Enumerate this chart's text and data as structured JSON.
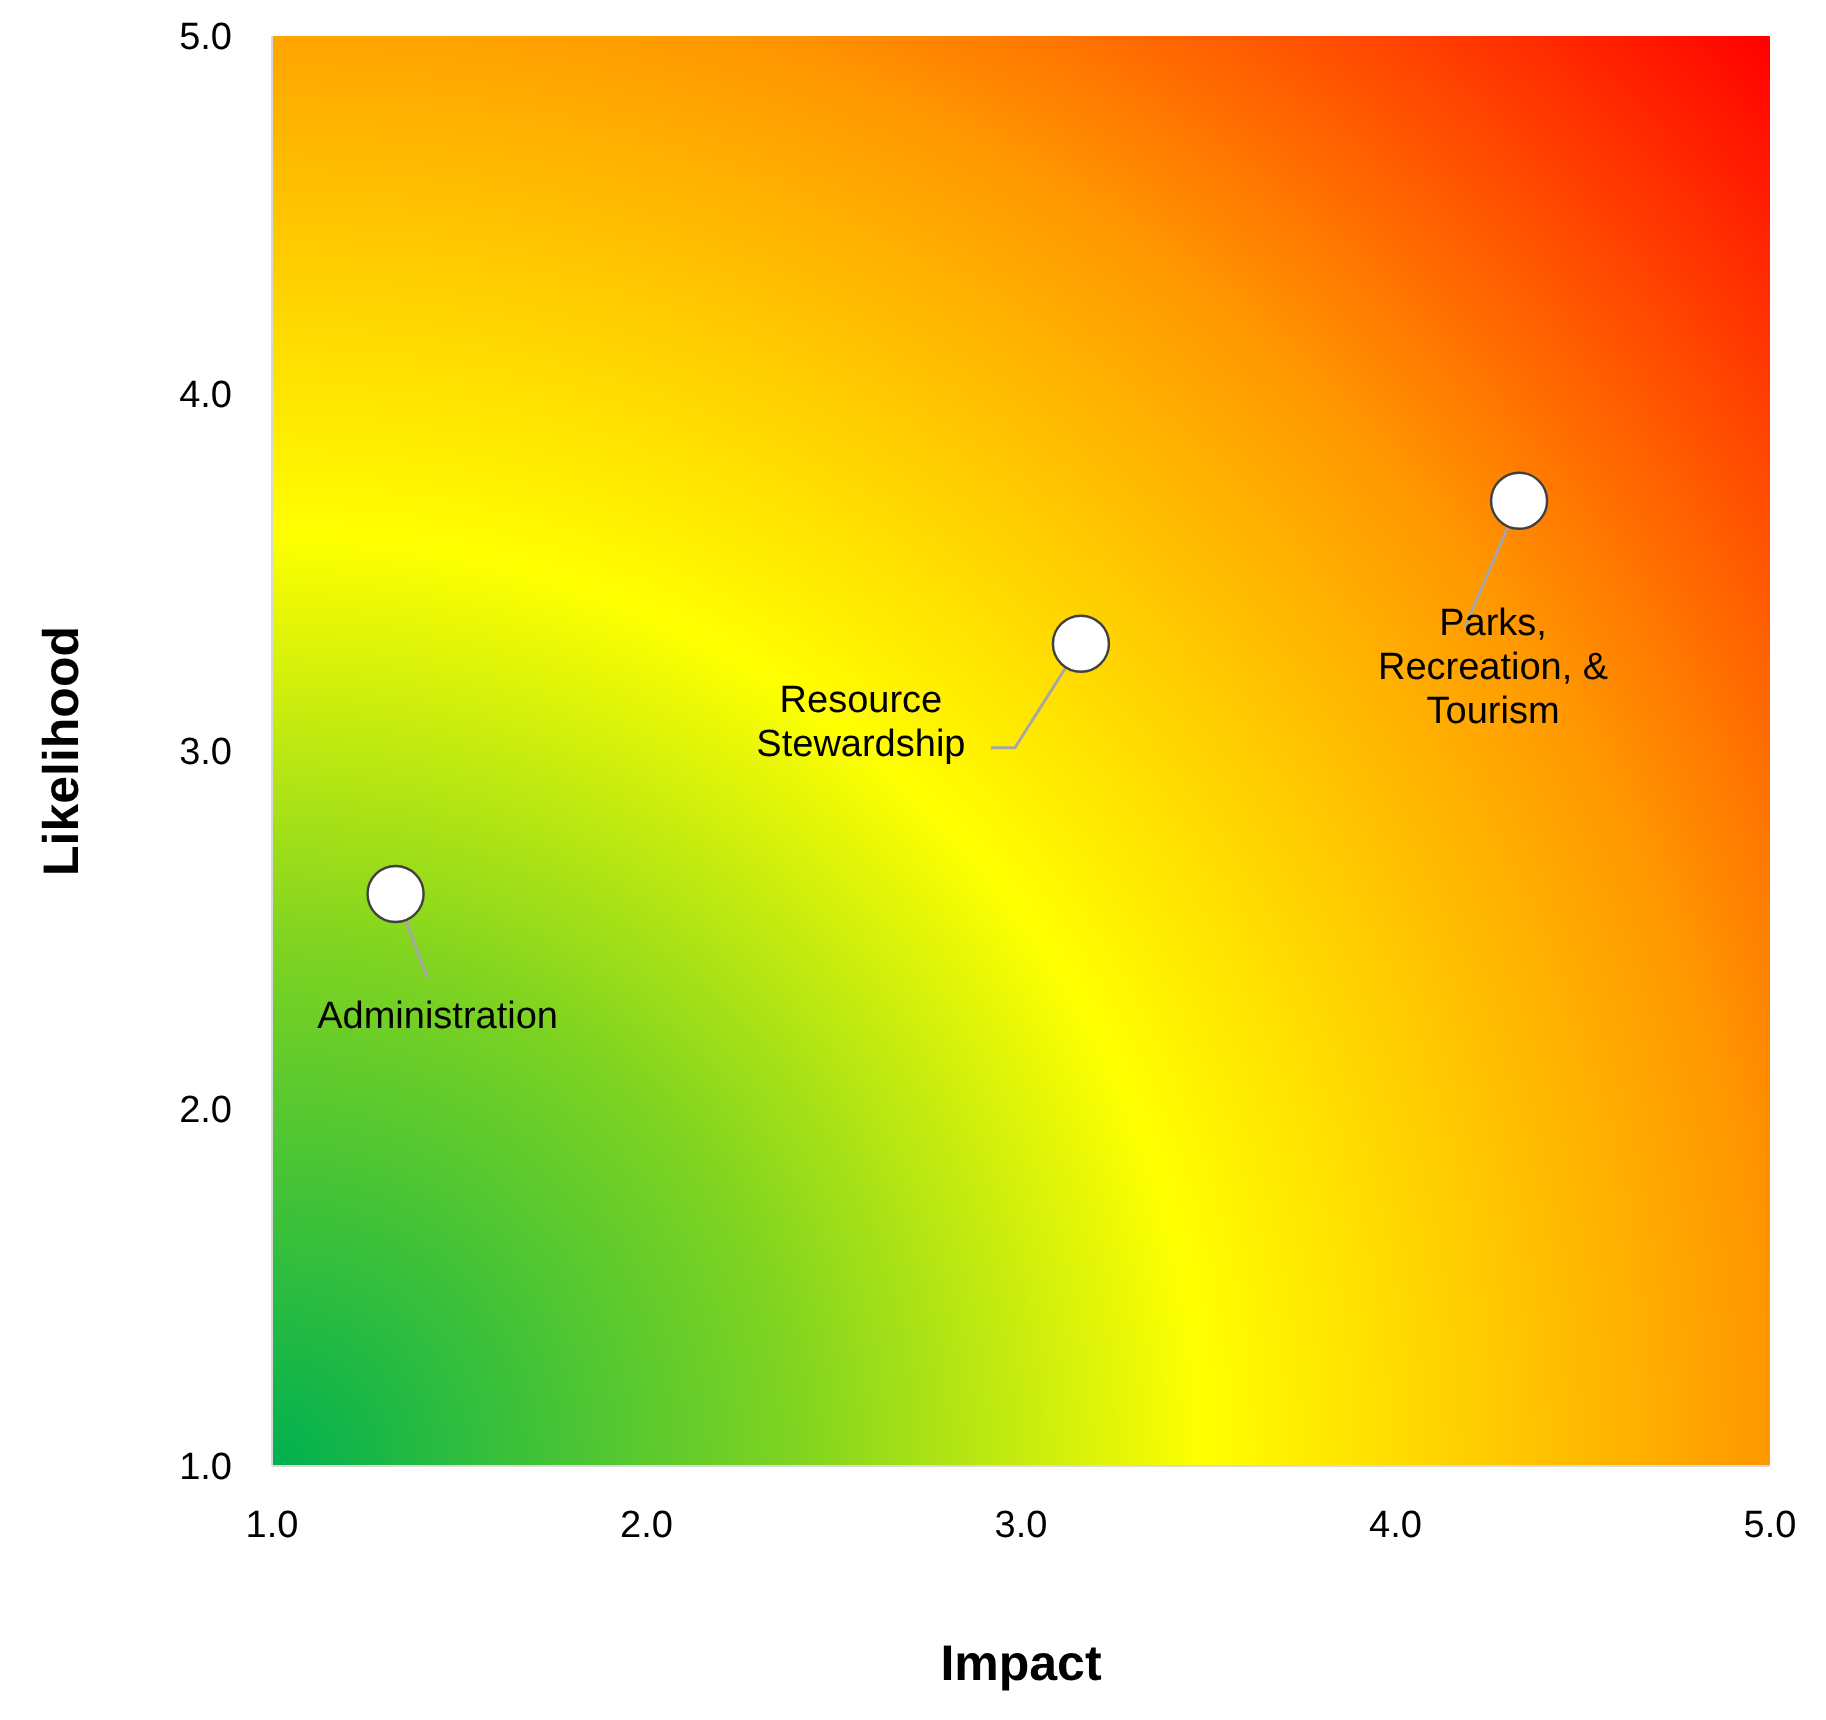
{
  "chart_data": {
    "type": "scatter",
    "xlabel": "Impact",
    "ylabel": "Likelihood",
    "x": [
      1.33,
      3.16,
      4.33
    ],
    "series": [
      {
        "color": "#ffffff",
        "values": [
          2.6,
          3.3,
          3.7
        ]
      }
    ],
    "xlim": [
      1,
      5
    ],
    "ylim": [
      1,
      5
    ],
    "xticks": [
      {
        "value": 1,
        "label": "1.0"
      },
      {
        "value": 2,
        "label": "2.0"
      },
      {
        "value": 3,
        "label": "3.0"
      },
      {
        "value": 4,
        "label": "4.0"
      },
      {
        "value": 5,
        "label": "5.0"
      }
    ],
    "yticks": [
      {
        "value": 1,
        "label": "1.0"
      },
      {
        "value": 2,
        "label": "2.0"
      },
      {
        "value": 3,
        "label": "3.0"
      },
      {
        "value": 4,
        "label": "4.0"
      },
      {
        "value": 5,
        "label": "5.0"
      }
    ],
    "marker": "circle",
    "grid": false,
    "annotations": [
      {
        "text": "Administration",
        "x": 1.33,
        "y": 2.6
      },
      {
        "text": "Resource\nStewardship",
        "x": 3.16,
        "y": 3.3
      },
      {
        "text": "Parks,\nRecreation, &\nTourism",
        "x": 4.33,
        "y": 3.7
      }
    ]
  }
}
